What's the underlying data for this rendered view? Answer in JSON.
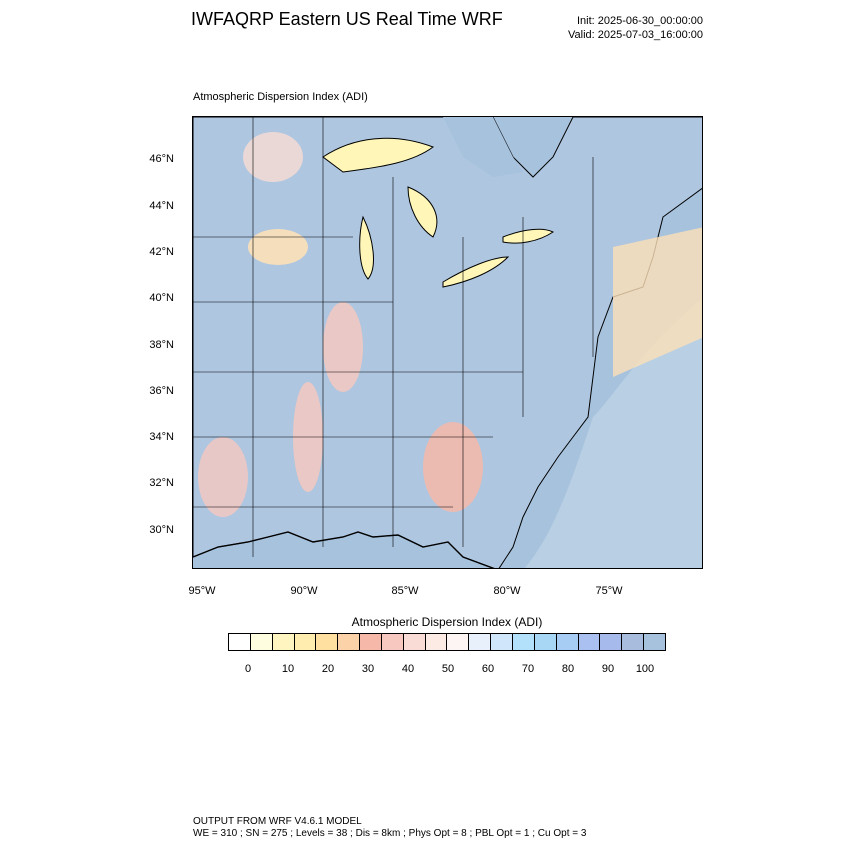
{
  "header": {
    "title": "IWFAQRP Eastern US Real Time WRF",
    "init": "Init: 2025-06-30_00:00:00",
    "valid": "Valid: 2025-07-03_16:00:00"
  },
  "map": {
    "subtitle": "Atmospheric Dispersion Index   (ADI)",
    "lat_labels": [
      "46°N",
      "44°N",
      "42°N",
      "40°N",
      "38°N",
      "36°N",
      "34°N",
      "32°N",
      "30°N"
    ],
    "lon_labels": [
      "95°W",
      "90°W",
      "85°W",
      "80°W",
      "75°W"
    ],
    "colors": {
      "water": "#a7c2dd",
      "land_high_adi": "#aec6e0",
      "lake": "#fff6b8",
      "moderate": "#f5c8c0",
      "low": "#fde0b8",
      "borders": "#000000"
    }
  },
  "colorbar": {
    "title": "Atmospheric Dispersion Index  (ADI)",
    "labels": [
      "0",
      "10",
      "20",
      "30",
      "40",
      "50",
      "60",
      "70",
      "80",
      "90",
      "100"
    ],
    "colors": [
      "#ffffff",
      "#fffde0",
      "#fff5c0",
      "#ffedb0",
      "#ffe0a0",
      "#fcd2a8",
      "#f6b8a8",
      "#f6c8c0",
      "#f9dcd5",
      "#fceae5",
      "#fdf5f3",
      "#e8f1fb",
      "#cfe6fb",
      "#b3e0fa",
      "#a8d7f5",
      "#a7cdf5",
      "#a9c0f0",
      "#a6baeb",
      "#a8bdde",
      "#a7c2dd"
    ]
  },
  "footer": {
    "line1": "OUTPUT FROM WRF V4.6.1 MODEL",
    "line2": "WE = 310 ; SN = 275 ; Levels = 38 ; Dis = 8km ; Phys Opt = 8 ; PBL Opt = 1 ; Cu Opt = 3"
  }
}
